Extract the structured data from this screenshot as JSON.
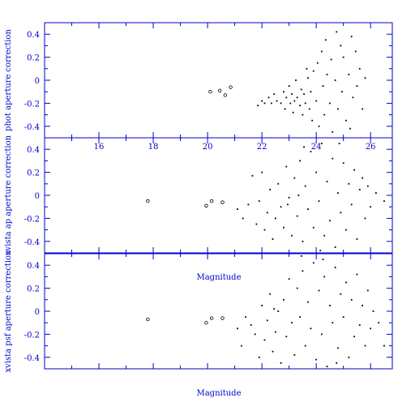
{
  "chart_data": {
    "type": "scatter",
    "x_tick_labels": [
      "16",
      "18",
      "20",
      "22",
      "24",
      "26"
    ],
    "y_tick_labels": [
      "0.4",
      "0.2",
      "0",
      "-0.2",
      "-0.4"
    ],
    "xlim": [
      14,
      26.8
    ],
    "ylim": [
      -0.5,
      0.5
    ],
    "bottom_xlabel": "Magnitude",
    "inner_xlabel": "Magnitude",
    "panels": [
      {
        "ylabel": "phot aperture correction",
        "x_tick_labels_below": true,
        "bright_points": [
          [
            20.1,
            -0.1
          ],
          [
            20.45,
            -0.09
          ],
          [
            20.65,
            -0.13
          ],
          [
            20.85,
            -0.06
          ]
        ],
        "faint_points": [
          [
            21.85,
            -0.22
          ],
          [
            22.0,
            -0.18
          ],
          [
            22.1,
            -0.2
          ],
          [
            22.25,
            -0.15
          ],
          [
            22.35,
            -0.2
          ],
          [
            22.45,
            -0.12
          ],
          [
            22.55,
            -0.18
          ],
          [
            22.7,
            -0.2
          ],
          [
            22.8,
            -0.1
          ],
          [
            22.85,
            -0.25
          ],
          [
            22.9,
            -0.15
          ],
          [
            23.0,
            -0.05
          ],
          [
            23.05,
            -0.2
          ],
          [
            23.1,
            -0.12
          ],
          [
            23.15,
            -0.28
          ],
          [
            23.2,
            -0.18
          ],
          [
            23.25,
            0.0
          ],
          [
            23.3,
            -0.15
          ],
          [
            23.4,
            -0.22
          ],
          [
            23.45,
            -0.08
          ],
          [
            23.5,
            -0.3
          ],
          [
            23.55,
            -0.12
          ],
          [
            23.6,
            -0.2
          ],
          [
            23.7,
            0.02
          ],
          [
            23.75,
            -0.25
          ],
          [
            23.8,
            -0.1
          ],
          [
            23.85,
            -0.35
          ],
          [
            23.9,
            0.08
          ],
          [
            24.0,
            -0.18
          ],
          [
            24.05,
            0.15
          ],
          [
            24.1,
            -0.4
          ],
          [
            24.2,
            0.25
          ],
          [
            24.25,
            -0.05
          ],
          [
            24.3,
            -0.3
          ],
          [
            24.4,
            0.05
          ],
          [
            24.5,
            -0.2
          ],
          [
            24.55,
            0.18
          ],
          [
            24.6,
            -0.45
          ],
          [
            24.7,
            0.0
          ],
          [
            24.8,
            -0.25
          ],
          [
            24.9,
            0.3
          ],
          [
            24.95,
            -0.1
          ],
          [
            25.0,
            0.2
          ],
          [
            25.1,
            -0.35
          ],
          [
            25.2,
            0.05
          ],
          [
            25.3,
            0.38
          ],
          [
            25.35,
            -0.15
          ],
          [
            25.45,
            0.25
          ],
          [
            25.5,
            -0.05
          ],
          [
            25.6,
            0.1
          ],
          [
            25.7,
            -0.25
          ],
          [
            25.8,
            0.02
          ],
          [
            24.35,
            0.35
          ],
          [
            23.65,
            0.1
          ],
          [
            24.75,
            0.42
          ],
          [
            25.25,
            -0.42
          ]
        ]
      },
      {
        "ylabel": "xvista ap aperture correction",
        "x_tick_labels_below": false,
        "bright_points": [
          [
            17.8,
            -0.05
          ],
          [
            19.95,
            -0.09
          ],
          [
            20.15,
            -0.05
          ],
          [
            20.55,
            -0.06
          ]
        ],
        "faint_points": [
          [
            21.1,
            -0.12
          ],
          [
            21.3,
            -0.2
          ],
          [
            21.5,
            -0.08
          ],
          [
            21.65,
            0.17
          ],
          [
            21.8,
            -0.25
          ],
          [
            21.9,
            -0.05
          ],
          [
            22.0,
            0.2
          ],
          [
            22.1,
            -0.3
          ],
          [
            22.2,
            -0.15
          ],
          [
            22.3,
            0.05
          ],
          [
            22.4,
            -0.38
          ],
          [
            22.5,
            -0.2
          ],
          [
            22.6,
            0.1
          ],
          [
            22.7,
            -0.1
          ],
          [
            22.8,
            -0.28
          ],
          [
            22.9,
            0.25
          ],
          [
            23.0,
            -0.02
          ],
          [
            23.1,
            -0.35
          ],
          [
            23.2,
            0.15
          ],
          [
            23.3,
            -0.18
          ],
          [
            23.4,
            0.3
          ],
          [
            23.5,
            -0.4
          ],
          [
            23.6,
            0.08
          ],
          [
            23.7,
            -0.12
          ],
          [
            23.8,
            0.38
          ],
          [
            23.9,
            -0.28
          ],
          [
            24.0,
            0.2
          ],
          [
            24.1,
            -0.05
          ],
          [
            24.2,
            0.45
          ],
          [
            24.3,
            -0.35
          ],
          [
            24.4,
            0.12
          ],
          [
            24.5,
            -0.22
          ],
          [
            24.6,
            0.32
          ],
          [
            24.7,
            -0.45
          ],
          [
            24.8,
            0.02
          ],
          [
            24.9,
            -0.15
          ],
          [
            25.0,
            0.28
          ],
          [
            25.1,
            -0.3
          ],
          [
            25.2,
            0.1
          ],
          [
            25.3,
            -0.08
          ],
          [
            25.4,
            0.22
          ],
          [
            25.5,
            -0.38
          ],
          [
            25.6,
            0.05
          ],
          [
            25.7,
            0.15
          ],
          [
            25.8,
            -0.2
          ],
          [
            25.9,
            0.08
          ],
          [
            26.0,
            -0.1
          ],
          [
            26.2,
            0.02
          ],
          [
            26.5,
            -0.05
          ],
          [
            23.55,
            0.42
          ],
          [
            24.15,
            -0.48
          ],
          [
            24.85,
            0.45
          ],
          [
            22.95,
            -0.08
          ],
          [
            23.35,
            0.0
          ]
        ]
      },
      {
        "ylabel": "xvista psf aperture correction",
        "x_tick_labels_below": false,
        "bright_points": [
          [
            17.8,
            -0.07
          ],
          [
            19.95,
            -0.1
          ],
          [
            20.15,
            -0.06
          ],
          [
            20.55,
            -0.06
          ]
        ],
        "faint_points": [
          [
            21.1,
            -0.15
          ],
          [
            21.25,
            -0.3
          ],
          [
            21.4,
            -0.05
          ],
          [
            21.6,
            -0.12
          ],
          [
            21.75,
            -0.2
          ],
          [
            21.9,
            -0.4
          ],
          [
            22.0,
            0.05
          ],
          [
            22.1,
            -0.25
          ],
          [
            22.2,
            -0.08
          ],
          [
            22.3,
            0.15
          ],
          [
            22.4,
            -0.35
          ],
          [
            22.5,
            -0.18
          ],
          [
            22.6,
            0.0
          ],
          [
            22.7,
            -0.45
          ],
          [
            22.8,
            0.1
          ],
          [
            22.9,
            -0.22
          ],
          [
            23.0,
            0.28
          ],
          [
            23.1,
            -0.1
          ],
          [
            23.2,
            -0.38
          ],
          [
            23.3,
            0.2
          ],
          [
            23.4,
            -0.05
          ],
          [
            23.5,
            0.35
          ],
          [
            23.6,
            -0.3
          ],
          [
            23.7,
            0.08
          ],
          [
            23.8,
            -0.15
          ],
          [
            23.9,
            0.42
          ],
          [
            24.0,
            -0.42
          ],
          [
            24.1,
            0.18
          ],
          [
            24.2,
            -0.2
          ],
          [
            24.3,
            0.3
          ],
          [
            24.4,
            -0.48
          ],
          [
            24.5,
            0.05
          ],
          [
            24.6,
            -0.1
          ],
          [
            24.7,
            0.38
          ],
          [
            24.8,
            -0.32
          ],
          [
            24.9,
            0.15
          ],
          [
            25.0,
            -0.05
          ],
          [
            25.1,
            0.25
          ],
          [
            25.2,
            -0.4
          ],
          [
            25.3,
            0.1
          ],
          [
            25.4,
            -0.22
          ],
          [
            25.5,
            0.32
          ],
          [
            25.6,
            -0.12
          ],
          [
            25.7,
            0.05
          ],
          [
            25.8,
            -0.3
          ],
          [
            25.9,
            0.18
          ],
          [
            26.0,
            -0.15
          ],
          [
            26.1,
            0.0
          ],
          [
            26.3,
            -0.1
          ],
          [
            26.5,
            -0.3
          ],
          [
            23.45,
            0.48
          ],
          [
            24.25,
            0.45
          ],
          [
            24.75,
            -0.45
          ],
          [
            22.45,
            0.02
          ]
        ]
      }
    ]
  }
}
